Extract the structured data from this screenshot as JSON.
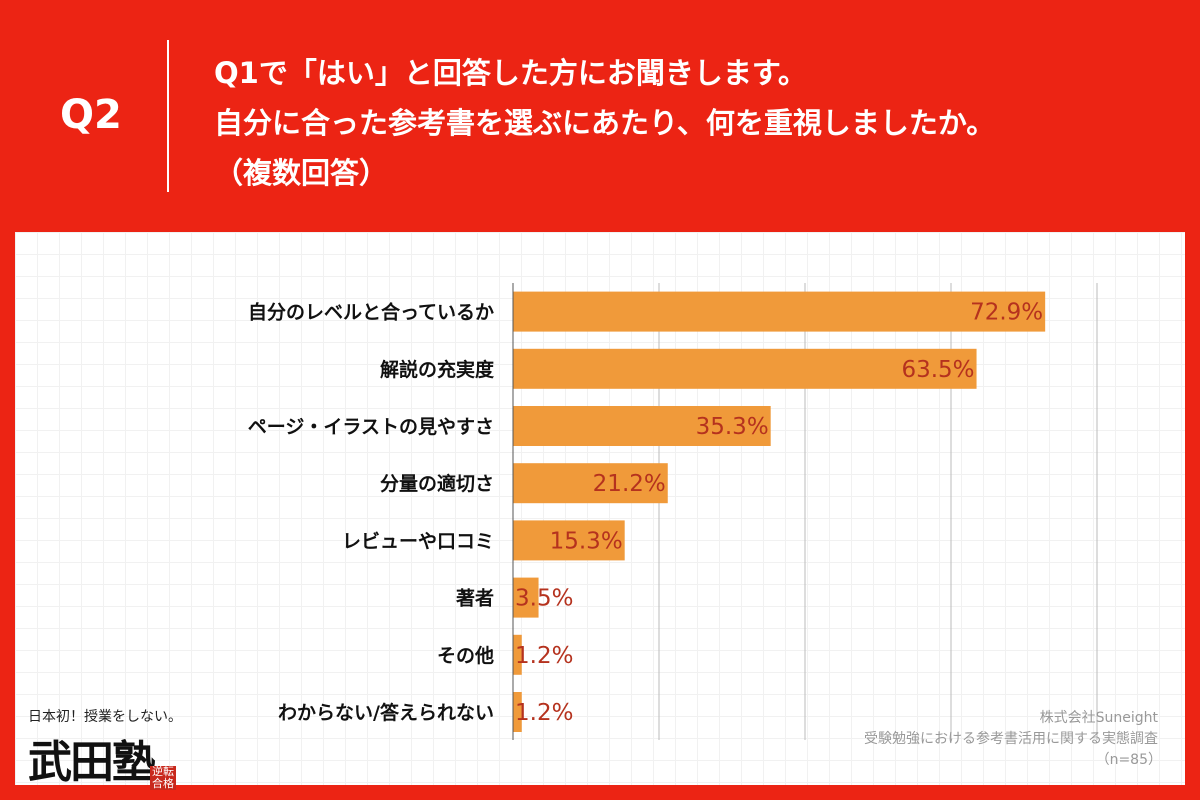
{
  "header": {
    "q_label": "Q2",
    "lines": [
      "Q1で「はい」と回答した方にお聞きします。",
      "自分に合った参考書を選ぶにあたり、何を重視しましたか。",
      "（複数回答）"
    ]
  },
  "colors": {
    "background": "#ec2414",
    "bar": "#f09a3a",
    "value_label": "#b5321e"
  },
  "chart_data": {
    "type": "bar",
    "orientation": "horizontal",
    "categories": [
      "自分のレベルと合っているか",
      "解説の充実度",
      "ページ・イラストの見やすさ",
      "分量の適切さ",
      "レビューや口コミ",
      "著者",
      "その他",
      "わからない/答えられない"
    ],
    "values": [
      72.9,
      63.5,
      35.3,
      21.2,
      15.3,
      3.5,
      1.2,
      1.2
    ],
    "value_labels": [
      "72.9%",
      "63.5%",
      "35.3%",
      "21.2%",
      "15.3%",
      "3.5%",
      "1.2%",
      "1.2%"
    ],
    "xlim": [
      0,
      80
    ],
    "grid": true,
    "gridline_step": 20
  },
  "source": {
    "company": "株式会社Suneight",
    "survey": "受験勉強における参考書活用に関する実態調査",
    "n": "（n=85）"
  },
  "logo": {
    "tagline": "日本初！授業をしない。",
    "brand": "武田塾",
    "stamp": "逆転合格"
  }
}
